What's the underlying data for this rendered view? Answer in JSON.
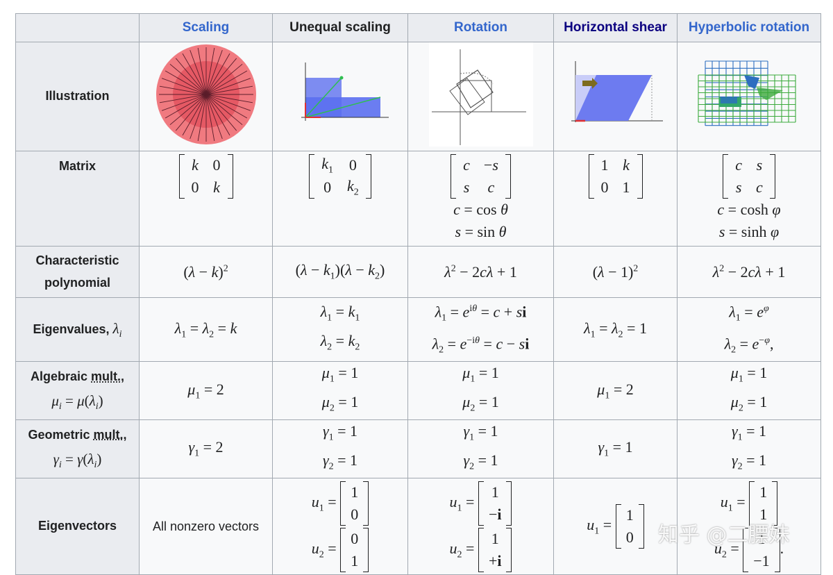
{
  "columns": [
    {
      "label": "Scaling",
      "color": "#3366cc"
    },
    {
      "label": "Unequal scaling",
      "color": "#202122"
    },
    {
      "label": "Rotation",
      "color": "#3366cc"
    },
    {
      "label": "Horizontal shear",
      "color": "#0b0080"
    },
    {
      "label": "Hyperbolic rotation",
      "color": "#3366cc"
    }
  ],
  "rows": {
    "illustration": "Illustration",
    "matrix": "Matrix",
    "char_poly_1": "Characteristic",
    "char_poly_2": "polynomial",
    "eigenvalues": "Eigenvalues,",
    "alg_mult_1": "Algebraic",
    "alg_mult_link": "mult.",
    "alg_mult_comma": ",",
    "geo_mult_1": "Geometric",
    "geo_mult_link": "mult.",
    "geo_mult_comma": ",",
    "eigenvectors": "Eigenvectors"
  },
  "cells": {
    "all_nonzero": "All nonzero vectors"
  },
  "watermark": "知乎 @二膘妹",
  "colors": {
    "header_bg": "#eaecf0",
    "cell_bg": "#f8f9fa",
    "border": "#a2a9b1"
  }
}
